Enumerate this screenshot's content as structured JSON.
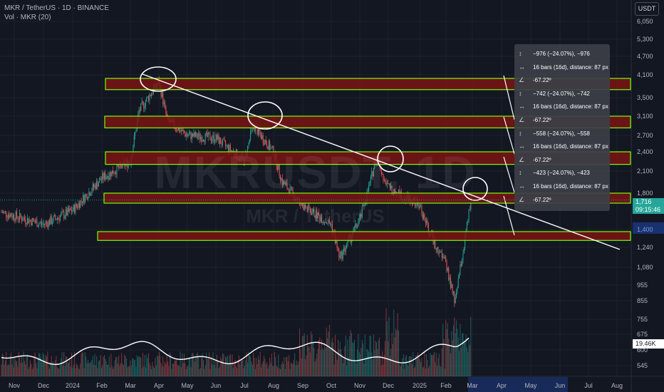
{
  "header": {
    "title": "MKR / TetherUS · 1D · BINANCE",
    "volume_label": "Vol · MKR (20)"
  },
  "watermark": {
    "symbol": "MKRUSDT, 1D",
    "name": "MKR / TetherUS"
  },
  "currency_button": "USDT",
  "price_label": {
    "value": "1,716",
    "countdown": "09:15:46",
    "color": "#26a69a"
  },
  "volume_label_value": "19.46K",
  "colors": {
    "up": "#26a69a",
    "down": "#ef5350",
    "zone_fill": "#7a1414",
    "zone_border": "#7cfc00",
    "trendline": "#ffffff",
    "background": "#131722"
  },
  "tooltip": {
    "rows": [
      {
        "icon": "price-range-icon",
        "text": "−976 (−24.07%), −976"
      },
      {
        "icon": "bars-range-icon",
        "text": "16 bars (16d), distance: 87 px"
      },
      {
        "icon": "angle-icon",
        "text": "-67.22º"
      },
      {
        "icon": "price-range-icon",
        "text": "−742 (−24.07%), −742"
      },
      {
        "icon": "bars-range-icon",
        "text": "16 bars (16d), distance: 87 px"
      },
      {
        "icon": "angle-icon",
        "text": "-67.22º"
      },
      {
        "icon": "price-range-icon",
        "text": "−558 (−24.07%), −558"
      },
      {
        "icon": "bars-range-icon",
        "text": "16 bars (16d), distance: 87 px"
      },
      {
        "icon": "angle-icon",
        "text": "-67.22º"
      },
      {
        "icon": "price-range-icon",
        "text": "−423 (−24.07%), −423"
      },
      {
        "icon": "bars-range-icon",
        "text": "16 bars (16d), distance: 87 px"
      },
      {
        "icon": "angle-icon",
        "text": "-67.22º"
      }
    ]
  },
  "chart_data": {
    "type": "candlestick",
    "scale": "log",
    "y_ticks": [
      "6,050",
      "5,300",
      "4,700",
      "4,100",
      "3,500",
      "3,100",
      "2,700",
      "2,400",
      "2,100",
      "1,800",
      "1,400",
      "1,240",
      "1,080",
      "955",
      "855",
      "755",
      "675",
      "600",
      "545"
    ],
    "x_ticks": [
      "Nov",
      "Dec",
      "2024",
      "Feb",
      "Mar",
      "Apr",
      "May",
      "Jun",
      "Jul",
      "Aug",
      "Sep",
      "Oct",
      "Nov",
      "Dec",
      "2025",
      "Feb",
      "Mar",
      "Apr",
      "May",
      "Jun",
      "Jul",
      "Aug"
    ],
    "close_path": [
      [
        "Nov",
        1580
      ],
      [
        "Dec",
        1450
      ],
      [
        "2024",
        1600
      ],
      [
        "Feb",
        2000
      ],
      [
        "Mar",
        2250
      ],
      [
        "Mar",
        3200
      ],
      [
        "Apr",
        3900
      ],
      [
        "Apr",
        3000
      ],
      [
        "May",
        2700
      ],
      [
        "Jun",
        2650
      ],
      [
        "Jul",
        2250
      ],
      [
        "Jul",
        2900
      ],
      [
        "Aug",
        2400
      ],
      [
        "Aug",
        1950
      ],
      [
        "Sep",
        1650
      ],
      [
        "Oct",
        1450
      ],
      [
        "Oct",
        1150
      ],
      [
        "Nov",
        1500
      ],
      [
        "Nov",
        1850
      ],
      [
        "Dec",
        2350
      ],
      [
        "Dec",
        1900
      ],
      [
        "2025",
        1650
      ],
      [
        "2025",
        1400
      ],
      [
        "Feb",
        1100
      ],
      [
        "Feb",
        850
      ],
      [
        "Feb",
        1200
      ],
      [
        "Mar",
        1716
      ]
    ],
    "support_resistance_zones": [
      {
        "low": 3700,
        "high": 4000
      },
      {
        "low": 2850,
        "high": 3100
      },
      {
        "low": 2200,
        "high": 2400
      },
      {
        "low": 1680,
        "high": 1800
      },
      {
        "low": 1300,
        "high": 1380
      }
    ],
    "trendline": {
      "from": [
        "Mar",
        4000
      ],
      "to": [
        "Aug",
        1240
      ]
    },
    "volume_ma": "Vol · MKR (20)",
    "title": "MKR / TetherUS · 1D · BINANCE"
  }
}
